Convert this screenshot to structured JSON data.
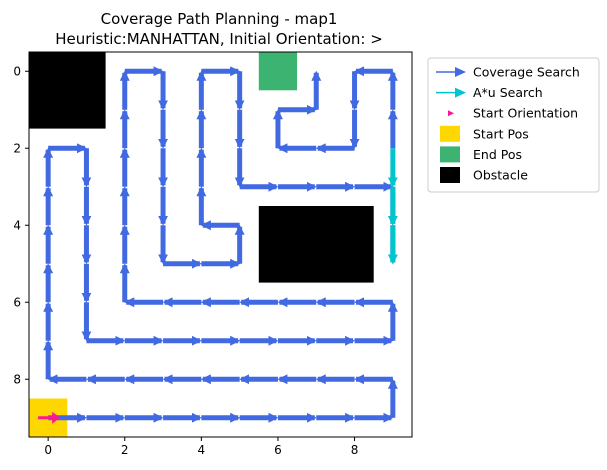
{
  "chart_data": {
    "type": "path-plot",
    "title_line1": "Coverage Path Planning - map1",
    "title_line2": "Heuristic:MANHATTAN, Initial Orientation: >",
    "xlim": [
      -0.5,
      9.5
    ],
    "ylim_inverted": [
      9.5,
      -0.5
    ],
    "x_ticks": [
      0,
      2,
      4,
      6,
      8
    ],
    "y_ticks": [
      0,
      2,
      4,
      6,
      8
    ],
    "legend_location": "outside-upper-right",
    "legend": [
      {
        "label": "Coverage Search",
        "kind": "arrow",
        "color": "#4169e1"
      },
      {
        "label": "A*u Search",
        "kind": "arrow",
        "color": "#00c5cd"
      },
      {
        "label": "Start Orientation",
        "kind": "small-arrow",
        "color": "#ff1493"
      },
      {
        "label": "Start Pos",
        "kind": "patch",
        "color": "#ffd700"
      },
      {
        "label": "End Pos",
        "kind": "patch",
        "color": "#3cb371"
      },
      {
        "label": "Obstacle",
        "kind": "patch",
        "color": "#000000"
      }
    ],
    "obstacles": [
      {
        "x": [
          0,
          1
        ],
        "y": [
          0,
          1
        ]
      },
      {
        "x": [
          6,
          8
        ],
        "y": [
          4,
          5
        ]
      }
    ],
    "start_pos": [
      0,
      9
    ],
    "end_pos": [
      6,
      0
    ],
    "start_orientation": ">",
    "coverage_path": [
      [
        0,
        9
      ],
      [
        1,
        9
      ],
      [
        2,
        9
      ],
      [
        3,
        9
      ],
      [
        4,
        9
      ],
      [
        5,
        9
      ],
      [
        6,
        9
      ],
      [
        7,
        9
      ],
      [
        8,
        9
      ],
      [
        9,
        9
      ],
      [
        9,
        8
      ],
      [
        8,
        8
      ],
      [
        7,
        8
      ],
      [
        6,
        8
      ],
      [
        5,
        8
      ],
      [
        4,
        8
      ],
      [
        3,
        8
      ],
      [
        2,
        8
      ],
      [
        1,
        8
      ],
      [
        0,
        8
      ],
      [
        0,
        7
      ],
      [
        0,
        6
      ],
      [
        0,
        5
      ],
      [
        0,
        4
      ],
      [
        0,
        3
      ],
      [
        0,
        2
      ],
      [
        1,
        2
      ],
      [
        1,
        3
      ],
      [
        1,
        4
      ],
      [
        1,
        5
      ],
      [
        1,
        6
      ],
      [
        1,
        7
      ],
      [
        2,
        7
      ],
      [
        3,
        7
      ],
      [
        4,
        7
      ],
      [
        5,
        7
      ],
      [
        6,
        7
      ],
      [
        7,
        7
      ],
      [
        8,
        7
      ],
      [
        9,
        7
      ],
      [
        9,
        6
      ],
      [
        8,
        6
      ],
      [
        7,
        6
      ],
      [
        6,
        6
      ],
      [
        5,
        6
      ],
      [
        4,
        6
      ],
      [
        3,
        6
      ],
      [
        2,
        6
      ],
      [
        2,
        5
      ],
      [
        2,
        4
      ],
      [
        2,
        3
      ],
      [
        2,
        2
      ],
      [
        2,
        1
      ],
      [
        2,
        0
      ],
      [
        3,
        0
      ],
      [
        3,
        1
      ],
      [
        3,
        2
      ],
      [
        3,
        3
      ],
      [
        3,
        4
      ],
      [
        3,
        5
      ],
      [
        4,
        5
      ],
      [
        5,
        5
      ],
      [
        5,
        4
      ],
      [
        4,
        4
      ],
      [
        4,
        3
      ],
      [
        4,
        2
      ],
      [
        4,
        1
      ],
      [
        4,
        0
      ],
      [
        5,
        0
      ],
      [
        5,
        1
      ],
      [
        5,
        2
      ],
      [
        5,
        3
      ],
      [
        6,
        3
      ],
      [
        7,
        3
      ],
      [
        8,
        3
      ],
      [
        9,
        3
      ],
      [
        9,
        4
      ],
      [
        9,
        5
      ]
    ],
    "coverage_path_2": [
      [
        9,
        2
      ],
      [
        9,
        1
      ],
      [
        9,
        0
      ],
      [
        8,
        0
      ],
      [
        8,
        1
      ],
      [
        8,
        2
      ],
      [
        7,
        2
      ],
      [
        6,
        2
      ],
      [
        6,
        1
      ],
      [
        7,
        1
      ],
      [
        7,
        0
      ]
    ],
    "astar_path": [
      [
        9,
        5
      ],
      [
        9,
        4
      ],
      [
        9,
        3
      ],
      [
        9,
        2
      ]
    ]
  }
}
